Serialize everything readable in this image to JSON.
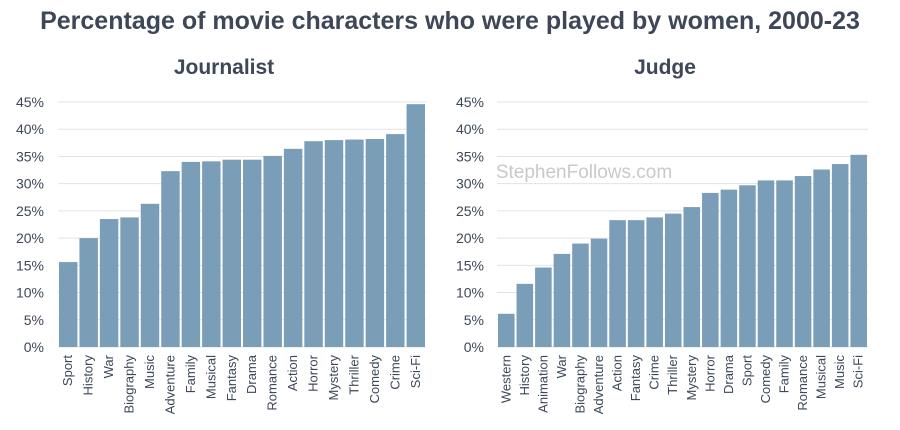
{
  "title": "Percentage of movie characters who were played by women, 2000-23",
  "watermark": "StephenFollows.com",
  "colors": {
    "bar": "#7a9db8",
    "text": "#3d4757",
    "grid": "#e3e3e3"
  },
  "chart_data": [
    {
      "type": "bar",
      "title": "Journalist",
      "ylim": [
        0,
        45
      ],
      "yticks": [
        "0%",
        "5%",
        "10%",
        "15%",
        "20%",
        "25%",
        "30%",
        "35%",
        "40%",
        "45%"
      ],
      "grid": true,
      "categories": [
        "Sport",
        "History",
        "War",
        "Biography",
        "Music",
        "Adventure",
        "Family",
        "Musical",
        "Fantasy",
        "Drama",
        "Romance",
        "Action",
        "Horror",
        "Mystery",
        "Thriller",
        "Comedy",
        "Crime",
        "Sci-Fi"
      ],
      "values": [
        15.6,
        20.0,
        23.5,
        23.8,
        26.3,
        32.3,
        34.0,
        34.1,
        34.4,
        34.4,
        35.1,
        36.4,
        37.8,
        38.0,
        38.1,
        38.2,
        39.1,
        44.6
      ]
    },
    {
      "type": "bar",
      "title": "Judge",
      "ylim": [
        0,
        45
      ],
      "yticks": [
        "0%",
        "5%",
        "10%",
        "15%",
        "20%",
        "25%",
        "30%",
        "35%",
        "40%",
        "45%"
      ],
      "grid": true,
      "categories": [
        "Western",
        "History",
        "Animation",
        "War",
        "Biography",
        "Adventure",
        "Action",
        "Fantasy",
        "Crime",
        "Thriller",
        "Mystery",
        "Horror",
        "Drama",
        "Sport",
        "Comedy",
        "Family",
        "Romance",
        "Musical",
        "Music",
        "Sci-Fi"
      ],
      "values": [
        6.1,
        11.6,
        14.6,
        17.1,
        19.0,
        19.9,
        23.3,
        23.3,
        23.8,
        24.5,
        25.7,
        28.3,
        28.9,
        29.7,
        30.6,
        30.6,
        31.4,
        32.6,
        33.6,
        35.3
      ]
    }
  ]
}
